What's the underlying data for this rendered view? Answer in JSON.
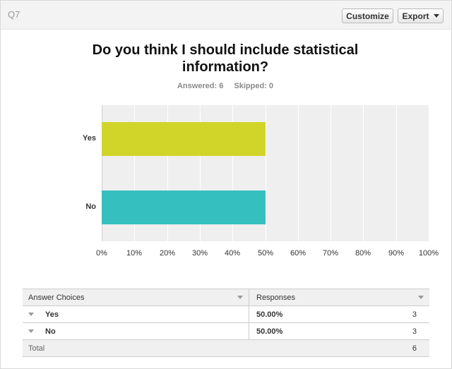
{
  "header": {
    "question_id": "Q7",
    "customize_label": "Customize",
    "export_label": "Export"
  },
  "question": {
    "title": "Do you think I should include statistical information?",
    "answered": "Answered: 6",
    "skipped": "Skipped: 0"
  },
  "chart_data": {
    "type": "bar",
    "orientation": "horizontal",
    "categories": [
      "Yes",
      "No"
    ],
    "values": [
      50,
      50
    ],
    "colors": [
      "#d1d52a",
      "#35bfbf"
    ],
    "xlim": [
      0,
      100
    ],
    "xticks": [
      "0%",
      "10%",
      "20%",
      "30%",
      "40%",
      "50%",
      "60%",
      "70%",
      "80%",
      "90%",
      "100%"
    ],
    "grid": true
  },
  "table": {
    "col_choice": "Answer Choices",
    "col_responses": "Responses",
    "rows": [
      {
        "choice": "Yes",
        "percent": "50.00%",
        "count": "3"
      },
      {
        "choice": "No",
        "percent": "50.00%",
        "count": "3"
      }
    ],
    "total_label": "Total",
    "total_count": "6"
  }
}
